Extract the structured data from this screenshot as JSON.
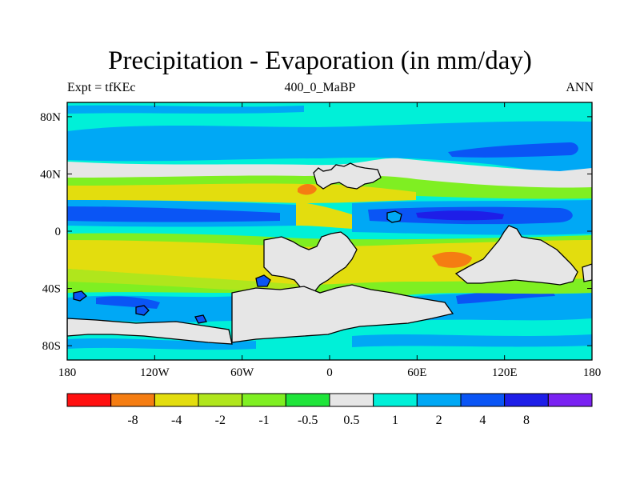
{
  "header": {
    "title": "Precipitation - Evaporation (in mm/day)",
    "left": "Expt = tfKEc",
    "center": "400_0_MaBP",
    "right": "ANN"
  },
  "map": {
    "background_color": "#00f0d8",
    "coast_color": "#000000",
    "lon_ticks": [
      "180",
      "120W",
      "60W",
      "0",
      "60E",
      "120E",
      "180"
    ],
    "lat_ticks": [
      "80N",
      "40N",
      "0",
      "40S",
      "80S"
    ],
    "lon_range": [
      -180,
      180
    ],
    "lat_range": [
      -90,
      90
    ]
  },
  "colorbar": {
    "colors": [
      "#ff1010",
      "#f57d12",
      "#e3dd0e",
      "#b0e61c",
      "#7fef22",
      "#1fe53a",
      "#e6e6e6",
      "#00f0d8",
      "#00a8f5",
      "#0a55f5",
      "#1e1ee8",
      "#7a22f2"
    ],
    "labels": [
      "-8",
      "-4",
      "-2",
      "-1",
      "-0.5",
      "0.5",
      "1",
      "2",
      "4",
      "8"
    ]
  }
}
